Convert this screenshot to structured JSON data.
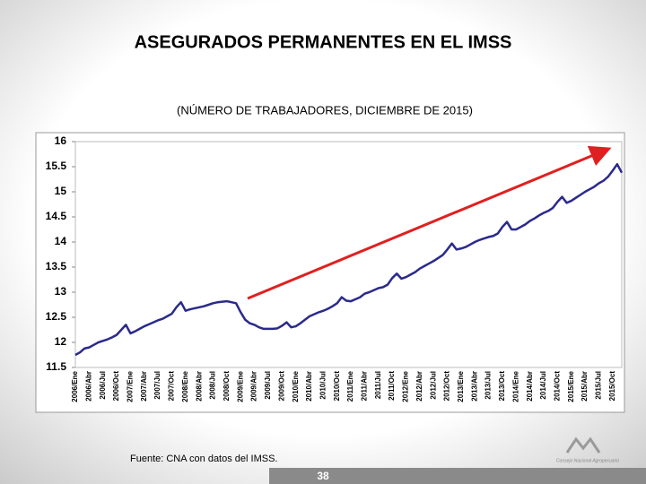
{
  "chart_data": {
    "type": "line",
    "title": "ASEGURADOS PERMANENTES EN EL IMSS",
    "subtitle": "(NÚMERO DE TRABAJADORES, DICIEMBRE DE 2015)",
    "source": "Fuente: CNA con datos del IMSS.",
    "page_number": "38",
    "logo_text": "Consejo Nacional Agropecuario",
    "color": "#2a2a8c",
    "ylim": [
      11.5,
      16
    ],
    "yticks": [
      11.5,
      12,
      12.5,
      13,
      13.5,
      14,
      14.5,
      15,
      15.5,
      16
    ],
    "categories": [
      "2006/Ene",
      null,
      null,
      "2006/Abr",
      null,
      null,
      "2006/Jul",
      null,
      null,
      "2006/Oct",
      null,
      null,
      "2007/Ene",
      null,
      null,
      "2007/Abr",
      null,
      null,
      "2007/Jul",
      null,
      null,
      "2007/Oct",
      null,
      null,
      "2008/Ene",
      null,
      null,
      "2008/Abr",
      null,
      null,
      "2008/Jul",
      null,
      null,
      "2008/Oct",
      null,
      null,
      "2009/Ene",
      null,
      null,
      "2009/Abr",
      null,
      null,
      "2009/Jul",
      null,
      null,
      "2009/Oct",
      null,
      null,
      "2010/Ene",
      null,
      null,
      "2010/Abr",
      null,
      null,
      "2010/Jul",
      null,
      null,
      "2010/Oct",
      null,
      null,
      "2011/Ene",
      null,
      null,
      "2011/Abr",
      null,
      null,
      "2011/Jul",
      null,
      null,
      "2011/Oct",
      null,
      null,
      "2012/Ene",
      null,
      null,
      "2012/Abr",
      null,
      null,
      "2012/Jul",
      null,
      null,
      "2012/Oct",
      null,
      null,
      "2013/Ene",
      null,
      null,
      "2013/Abr",
      null,
      null,
      "2013/Jul",
      null,
      null,
      "2013/Oct",
      null,
      null,
      "2014/Ene",
      null,
      null,
      "2014/Abr",
      null,
      null,
      "2014/Jul",
      null,
      null,
      "2014/Oct",
      null,
      null,
      "2015/Ene",
      null,
      null,
      "2015/Abr",
      null,
      null,
      "2015/Jul",
      null,
      null,
      "2015/Oct",
      null,
      null
    ],
    "values": [
      11.75,
      11.8,
      11.88,
      11.9,
      11.95,
      12.0,
      12.03,
      12.06,
      12.1,
      12.15,
      12.25,
      12.35,
      12.18,
      12.22,
      12.27,
      12.32,
      12.36,
      12.4,
      12.44,
      12.47,
      12.52,
      12.57,
      12.7,
      12.8,
      12.63,
      12.66,
      12.68,
      12.7,
      12.72,
      12.75,
      12.78,
      12.8,
      12.81,
      12.82,
      12.8,
      12.78,
      12.6,
      12.45,
      12.38,
      12.35,
      12.3,
      12.27,
      12.27,
      12.27,
      12.28,
      12.33,
      12.4,
      12.3,
      12.32,
      12.38,
      12.45,
      12.52,
      12.56,
      12.6,
      12.63,
      12.67,
      12.72,
      12.78,
      12.9,
      12.83,
      12.82,
      12.86,
      12.9,
      12.97,
      13.0,
      13.04,
      13.08,
      13.1,
      13.15,
      13.28,
      13.37,
      13.27,
      13.3,
      13.35,
      13.4,
      13.47,
      13.52,
      13.57,
      13.62,
      13.68,
      13.74,
      13.85,
      13.97,
      13.85,
      13.87,
      13.9,
      13.95,
      14.0,
      14.04,
      14.07,
      14.1,
      14.12,
      14.17,
      14.3,
      14.4,
      14.25,
      14.25,
      14.3,
      14.35,
      14.42,
      14.47,
      14.53,
      14.58,
      14.62,
      14.68,
      14.8,
      14.9,
      14.78,
      14.82,
      14.88,
      14.94,
      15.0,
      15.05,
      15.1,
      15.17,
      15.22,
      15.3,
      15.42,
      15.55,
      15.38
    ]
  }
}
